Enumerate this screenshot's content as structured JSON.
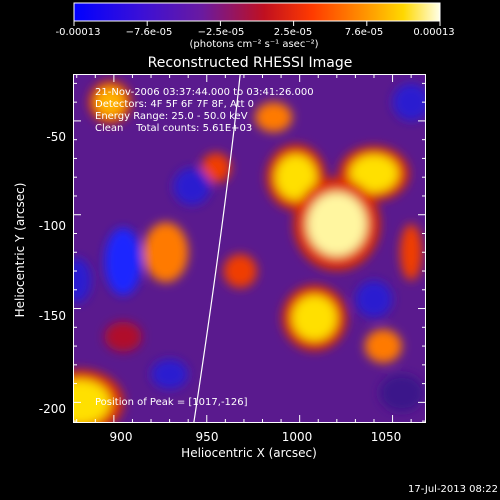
{
  "colorbar": {
    "tick_labels": [
      "-0.00013",
      "−7.6e-05",
      "−2.5e-05",
      "2.5e-05",
      "7.6e-05",
      "0.00013"
    ],
    "units": "(photons cm⁻² s⁻¹ asec⁻²)"
  },
  "chart_data": {
    "type": "heatmap",
    "title": "Reconstructed RHESSI Image",
    "xlabel": "Heliocentric X (arcsec)",
    "ylabel": "Heliocentric Y (arcsec)",
    "xlim": [
      878,
      1068
    ],
    "ylim": [
      -211,
      -25
    ],
    "xticks": [
      900,
      950,
      1000,
      1050
    ],
    "yticks": [
      -50,
      -100,
      -150,
      -200
    ],
    "zlim": [
      -0.00013,
      0.00013
    ],
    "colormap": "rhessi (blue-purple-red-orange-yellow-white)",
    "annotations": {
      "time": "21-Nov-2006 03:37:44.000 to 03:41:26.000",
      "detectors": "Detectors: 4F 5F 6F 7F 8F, Att 0",
      "energy": "Energy Range: 25.0 - 50.0 keV",
      "clean": "Clean    Total counts: 5.61E+03",
      "peak": "Position of Peak = [1017,-126]"
    },
    "peak_position": [
      1017,
      -126
    ],
    "limb_curve": [
      [
        968,
        -25
      ],
      [
        960,
        -100
      ],
      [
        943,
        -211
      ]
    ],
    "blobs": [
      [
        1020,
        -105,
        16,
        17,
        1.0
      ],
      [
        998,
        -80,
        11,
        12,
        0.85
      ],
      [
        1040,
        -78,
        13,
        10,
        0.75
      ],
      [
        1008,
        -155,
        12,
        12,
        0.75
      ],
      [
        1045,
        -170,
        10,
        9,
        0.55
      ],
      [
        986,
        -48,
        10,
        8,
        0.55
      ],
      [
        898,
        -40,
        8,
        8,
        0.65
      ],
      [
        882,
        -200,
        16,
        12,
        0.85
      ],
      [
        928,
        -120,
        12,
        16,
        0.5
      ],
      [
        968,
        -130,
        9,
        9,
        0.4
      ],
      [
        955,
        -75,
        8,
        8,
        0.3
      ],
      [
        1060,
        -120,
        6,
        15,
        0.35
      ],
      [
        905,
        -165,
        10,
        8,
        0.15
      ],
      [
        905,
        -125,
        10,
        18,
        -0.9
      ],
      [
        880,
        -135,
        8,
        12,
        -0.6
      ],
      [
        942,
        -85,
        10,
        10,
        -0.5
      ],
      [
        1040,
        -145,
        10,
        10,
        -0.55
      ],
      [
        930,
        -185,
        10,
        8,
        -0.5
      ],
      [
        1055,
        -195,
        12,
        10,
        -0.3
      ],
      [
        1060,
        -40,
        10,
        10,
        -0.6
      ]
    ]
  },
  "footer": {
    "timestamp": "17-Jul-2013 08:22"
  }
}
